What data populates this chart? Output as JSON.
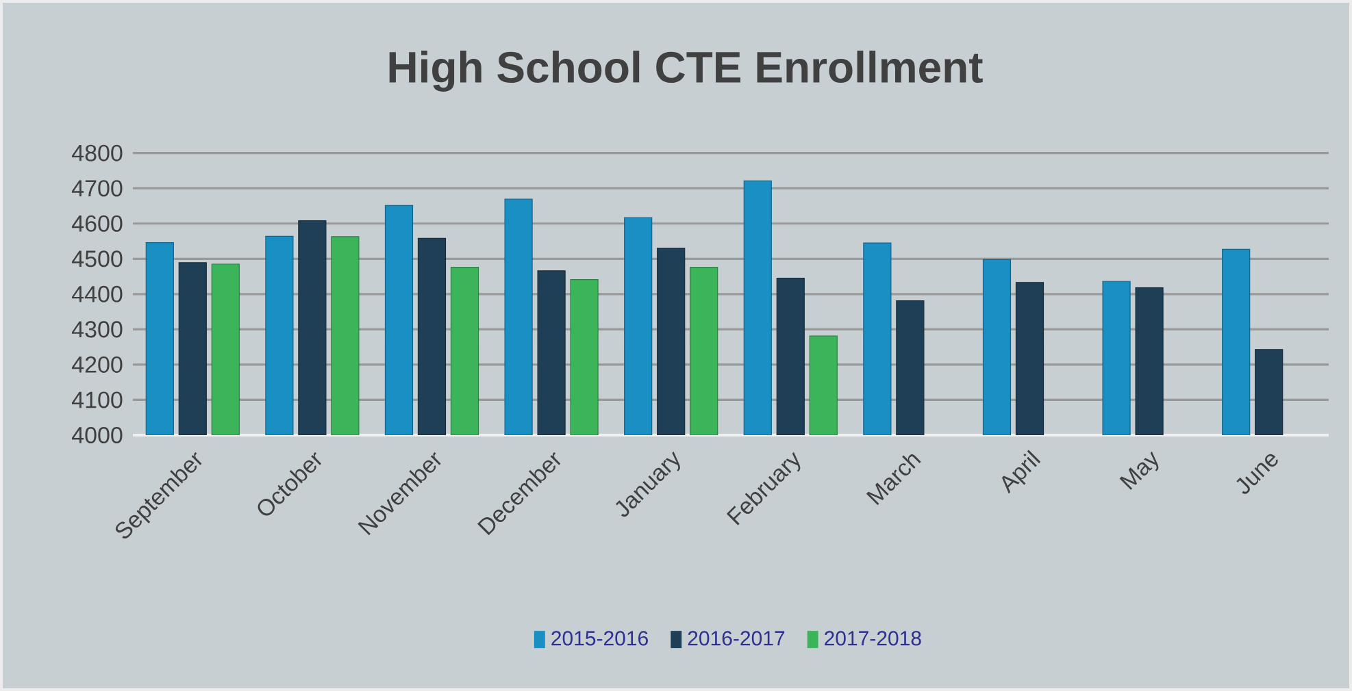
{
  "chart_data": {
    "type": "bar",
    "title": "High School CTE Enrollment",
    "categories": [
      "September",
      "October",
      "November",
      "December",
      "January",
      "February",
      "March",
      "April",
      "May",
      "June"
    ],
    "series": [
      {
        "name": "2015-2016",
        "color": "#1a8fc4",
        "values": [
          4546,
          4564,
          4651,
          4669,
          4617,
          4721,
          4545,
          4498,
          4436,
          4527
        ]
      },
      {
        "name": "2016-2017",
        "color": "#1f3f57",
        "values": [
          4489,
          4608,
          4558,
          4466,
          4530,
          4445,
          4381,
          4433,
          4418,
          4243
        ]
      },
      {
        "name": "2017-2018",
        "color": "#3cb55a",
        "values": [
          4485,
          4563,
          4476,
          4441,
          4476,
          4281,
          null,
          null,
          null,
          null
        ]
      }
    ],
    "ylim": [
      4000,
      4800
    ],
    "yticks": [
      4000,
      4100,
      4200,
      4300,
      4400,
      4500,
      4600,
      4700,
      4800
    ],
    "grid": "y",
    "legend": "bottom"
  }
}
